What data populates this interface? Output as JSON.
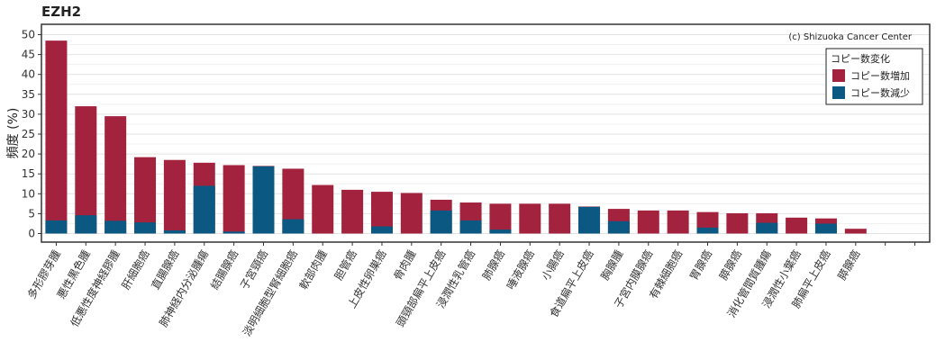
{
  "chart_data": {
    "type": "bar",
    "title": "EZH2",
    "ylabel": "頻度 (%)",
    "xlabel": "",
    "ylim": [
      0,
      52
    ],
    "yticks": [
      0,
      5,
      10,
      15,
      20,
      25,
      30,
      35,
      40,
      45,
      50
    ],
    "credit": "(c) Shizuoka Cancer Center",
    "legend": {
      "title": "コピー数変化",
      "placement": "top-right",
      "entries": [
        {
          "label": "コピー数増加",
          "color": "#a3233e"
        },
        {
          "label": "コピー数減少",
          "color": "#0b5882"
        }
      ]
    },
    "grid": true,
    "categories": [
      "多形膠芽腫",
      "悪性黒色腫",
      "低悪性度神経膠腫",
      "肝細胞癌",
      "直腸腺癌",
      "肺神経内分泌腫瘍",
      "結腸腺癌",
      "子宮頸癌",
      "淡明細胞型腎細胞癌",
      "軟部肉腫",
      "胆管癌",
      "上皮性卵巣癌",
      "骨肉腫",
      "頭頸部扁平上皮癌",
      "浸潤性乳管癌",
      "肺腺癌",
      "唾液腺癌",
      "小腸癌",
      "食道扁平上皮癌",
      "胸腺腫",
      "子宮内膜腺癌",
      "有棘細胞癌",
      "胃腺癌",
      "膵腺癌",
      "消化管間質腫瘍",
      "浸潤性小葉癌",
      "肺扁平上皮癌",
      "膵腺癌",
      "",
      ""
    ],
    "series": [
      {
        "name": "コピー数増加",
        "color": "#a3233e",
        "values": [
          48.5,
          32,
          29.5,
          19.2,
          18.5,
          17.8,
          17.2,
          17,
          16.3,
          12.2,
          11,
          10.5,
          10.2,
          8.5,
          7.8,
          7.5,
          7.5,
          7.5,
          6.8,
          6.2,
          5.8,
          5.8,
          5.4,
          5.1,
          5.1,
          4,
          3.8,
          1.2,
          0,
          0
        ]
      },
      {
        "name": "コピー数減少",
        "color": "#0b5882",
        "values": [
          3.3,
          4.6,
          3.2,
          2.8,
          0.8,
          12,
          0.5,
          16.9,
          3.6,
          0,
          0,
          1.8,
          0,
          5.8,
          3.3,
          1,
          0,
          0,
          6.7,
          3.1,
          0,
          0,
          1.5,
          0,
          2.7,
          0,
          2.5,
          0,
          0,
          0
        ]
      }
    ]
  }
}
